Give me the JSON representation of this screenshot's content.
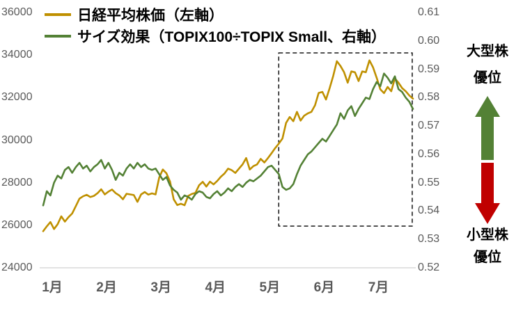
{
  "colors": {
    "gold": "#BF9000",
    "green": "#538135",
    "red": "#C00000",
    "axis_text": "#595959",
    "axis_line": "#D9D9D9",
    "highlight_box": "#000000"
  },
  "legend": {
    "items": [
      {
        "label": "日経平均株価（左軸）",
        "color": "#BF9000"
      },
      {
        "label": "サイズ効果（TOPIX100÷TOPIX Small、右軸）",
        "color": "#538135"
      }
    ]
  },
  "annotations": {
    "large_cap": {
      "line1": "大型株",
      "line2": "優位"
    },
    "small_cap": {
      "line1": "小型株",
      "line2": "優位"
    },
    "up_arrow_color": "#538135",
    "down_arrow_color": "#C00000"
  },
  "chart_data": {
    "type": "line",
    "title": "",
    "x_tick_labels": [
      "1月",
      "2月",
      "3月",
      "4月",
      "5月",
      "6月",
      "7月"
    ],
    "points_per_month": 15,
    "left_axis": {
      "min": 24000,
      "max": 36000,
      "ticks": [
        36000,
        34000,
        32000,
        30000,
        28000,
        26000,
        24000
      ]
    },
    "right_axis": {
      "min": 0.52,
      "max": 0.61,
      "ticks": [
        "0.61",
        "0.60",
        "0.59",
        "0.58",
        "0.57",
        "0.56",
        "0.55",
        "0.54",
        "0.53",
        "0.52"
      ]
    },
    "highlight_box": {
      "x0_frac": 0.637,
      "x1_frac": 0.998,
      "top_left_value": 34100,
      "bottom_left_value": 25960
    },
    "series": [
      {
        "id": "nikkei-price-line",
        "name": "日経平均株価（左軸）",
        "axis": "left",
        "color": "#BF9000",
        "values": [
          25720,
          25950,
          26150,
          25820,
          26050,
          26420,
          26170,
          26380,
          26550,
          26900,
          27250,
          27360,
          27430,
          27330,
          27380,
          27510,
          27690,
          27450,
          27580,
          27680,
          27510,
          27400,
          27220,
          27480,
          27450,
          27420,
          27100,
          27450,
          27560,
          27440,
          27500,
          27450,
          28240,
          28620,
          28440,
          28050,
          27220,
          26950,
          27010,
          26940,
          27380,
          27470,
          27520,
          27880,
          28040,
          27820,
          28050,
          27920,
          28080,
          28280,
          28430,
          28660,
          28590,
          28460,
          28660,
          28860,
          29160,
          28620,
          28780,
          28860,
          29120,
          28950,
          29160,
          29390,
          29630,
          29840,
          30080,
          30810,
          31090,
          30890,
          31330,
          30920,
          31150,
          31260,
          31330,
          31640,
          32220,
          32270,
          31910,
          32440,
          33020,
          33710,
          33490,
          33190,
          32700,
          33230,
          33190,
          32780,
          33230,
          33190,
          33750,
          33420,
          32930,
          32390,
          32210,
          32500,
          32300,
          32900,
          32700,
          32450,
          32300,
          32100,
          31950
        ]
      },
      {
        "id": "size-effect-line",
        "name": "サイズ効果（TOPIX100÷TOPIX Small、右軸）",
        "axis": "right",
        "color": "#538135",
        "values": [
          0.542,
          0.547,
          0.5455,
          0.55,
          0.5525,
          0.5515,
          0.5545,
          0.5555,
          0.5535,
          0.5555,
          0.557,
          0.555,
          0.556,
          0.554,
          0.5555,
          0.5565,
          0.558,
          0.555,
          0.557,
          0.5545,
          0.551,
          0.5535,
          0.5525,
          0.555,
          0.5565,
          0.555,
          0.557,
          0.5555,
          0.5565,
          0.555,
          0.5545,
          0.555,
          0.553,
          0.551,
          0.552,
          0.549,
          0.5475,
          0.5465,
          0.544,
          0.5455,
          0.545,
          0.544,
          0.546,
          0.547,
          0.5465,
          0.545,
          0.5445,
          0.546,
          0.547,
          0.5455,
          0.5465,
          0.548,
          0.547,
          0.5485,
          0.5495,
          0.5485,
          0.55,
          0.551,
          0.5505,
          0.5515,
          0.5525,
          0.554,
          0.5555,
          0.556,
          0.5545,
          0.553,
          0.5485,
          0.5475,
          0.548,
          0.5495,
          0.553,
          0.556,
          0.558,
          0.56,
          0.561,
          0.5625,
          0.564,
          0.5655,
          0.5645,
          0.5665,
          0.5685,
          0.5705,
          0.5745,
          0.5725,
          0.5755,
          0.577,
          0.5735,
          0.576,
          0.578,
          0.58,
          0.5795,
          0.583,
          0.5855,
          0.584,
          0.5885,
          0.587,
          0.585,
          0.5875,
          0.583,
          0.582,
          0.58,
          0.5785,
          0.576
        ]
      }
    ]
  }
}
